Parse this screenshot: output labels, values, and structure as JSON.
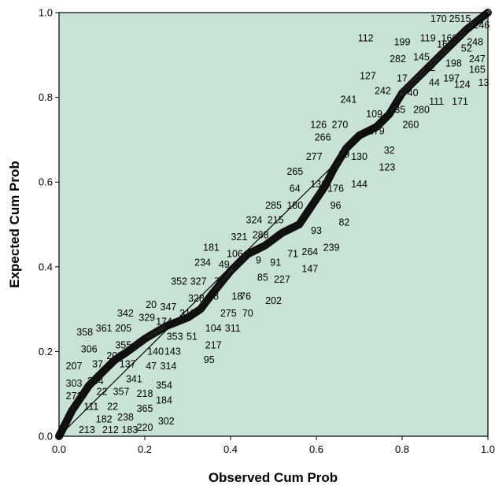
{
  "chart_data": {
    "type": "scatter",
    "title": "",
    "xlabel": "Observed Cum Prob",
    "ylabel": "Expected Cum Prob",
    "xlim": [
      0,
      1
    ],
    "ylim": [
      0,
      1
    ],
    "xticks": [
      "0.0",
      "0.2",
      "0.4",
      "0.6",
      "0.8",
      "1.0"
    ],
    "yticks": [
      "0.0",
      "0.2",
      "0.4",
      "0.6",
      "0.8",
      "1.0"
    ],
    "grid": false,
    "legend": "none",
    "colors": {
      "plot_bg": "#c8e3d3",
      "marker": "#111111",
      "line": "#000000"
    },
    "reference_line": [
      [
        0,
        0
      ],
      [
        1,
        1
      ]
    ],
    "curve": [
      [
        0.0,
        0.0
      ],
      [
        0.01,
        0.02
      ],
      [
        0.02,
        0.04
      ],
      [
        0.03,
        0.06
      ],
      [
        0.05,
        0.09
      ],
      [
        0.07,
        0.12
      ],
      [
        0.1,
        0.15
      ],
      [
        0.13,
        0.18
      ],
      [
        0.16,
        0.2
      ],
      [
        0.2,
        0.23
      ],
      [
        0.25,
        0.26
      ],
      [
        0.3,
        0.28
      ],
      [
        0.33,
        0.3
      ],
      [
        0.36,
        0.34
      ],
      [
        0.4,
        0.39
      ],
      [
        0.44,
        0.43
      ],
      [
        0.48,
        0.45
      ],
      [
        0.52,
        0.48
      ],
      [
        0.56,
        0.5
      ],
      [
        0.58,
        0.53
      ],
      [
        0.6,
        0.56
      ],
      [
        0.62,
        0.59
      ],
      [
        0.64,
        0.63
      ],
      [
        0.67,
        0.68
      ],
      [
        0.7,
        0.71
      ],
      [
        0.74,
        0.73
      ],
      [
        0.77,
        0.76
      ],
      [
        0.8,
        0.81
      ],
      [
        0.85,
        0.86
      ],
      [
        0.9,
        0.91
      ],
      [
        0.95,
        0.96
      ],
      [
        1.0,
        1.0
      ]
    ],
    "annotations": [
      {
        "text": "170",
        "x": 0.885,
        "y": 0.985
      },
      {
        "text": "2515",
        "x": 0.935,
        "y": 0.985
      },
      {
        "text": "112",
        "x": 0.715,
        "y": 0.94
      },
      {
        "text": "199",
        "x": 0.8,
        "y": 0.93
      },
      {
        "text": "119",
        "x": 0.86,
        "y": 0.94
      },
      {
        "text": "166",
        "x": 0.91,
        "y": 0.94
      },
      {
        "text": "246",
        "x": 0.985,
        "y": 0.97
      },
      {
        "text": "248",
        "x": 0.97,
        "y": 0.93
      },
      {
        "text": "160",
        "x": 0.9,
        "y": 0.925
      },
      {
        "text": "52",
        "x": 0.95,
        "y": 0.915
      },
      {
        "text": "282",
        "x": 0.79,
        "y": 0.89
      },
      {
        "text": "145",
        "x": 0.845,
        "y": 0.895
      },
      {
        "text": "198",
        "x": 0.92,
        "y": 0.88
      },
      {
        "text": "247",
        "x": 0.975,
        "y": 0.89
      },
      {
        "text": "42",
        "x": 0.865,
        "y": 0.87
      },
      {
        "text": "165",
        "x": 0.975,
        "y": 0.865
      },
      {
        "text": "127",
        "x": 0.72,
        "y": 0.85
      },
      {
        "text": "17",
        "x": 0.8,
        "y": 0.845
      },
      {
        "text": "44",
        "x": 0.875,
        "y": 0.835
      },
      {
        "text": "197",
        "x": 0.915,
        "y": 0.845
      },
      {
        "text": "124",
        "x": 0.94,
        "y": 0.83
      },
      {
        "text": "13",
        "x": 0.99,
        "y": 0.835
      },
      {
        "text": "242",
        "x": 0.755,
        "y": 0.815
      },
      {
        "text": "40",
        "x": 0.825,
        "y": 0.81
      },
      {
        "text": "241",
        "x": 0.675,
        "y": 0.795
      },
      {
        "text": "111",
        "x": 0.88,
        "y": 0.79
      },
      {
        "text": "171",
        "x": 0.935,
        "y": 0.79
      },
      {
        "text": "35",
        "x": 0.795,
        "y": 0.77
      },
      {
        "text": "280",
        "x": 0.845,
        "y": 0.77
      },
      {
        "text": "109",
        "x": 0.735,
        "y": 0.76
      },
      {
        "text": "126",
        "x": 0.605,
        "y": 0.735
      },
      {
        "text": "270",
        "x": 0.655,
        "y": 0.735
      },
      {
        "text": "260",
        "x": 0.82,
        "y": 0.735
      },
      {
        "text": "179",
        "x": 0.74,
        "y": 0.72
      },
      {
        "text": "266",
        "x": 0.615,
        "y": 0.705
      },
      {
        "text": "32",
        "x": 0.77,
        "y": 0.675
      },
      {
        "text": "277",
        "x": 0.595,
        "y": 0.66
      },
      {
        "text": "29",
        "x": 0.665,
        "y": 0.665
      },
      {
        "text": "130",
        "x": 0.7,
        "y": 0.66
      },
      {
        "text": "123",
        "x": 0.765,
        "y": 0.635
      },
      {
        "text": "265",
        "x": 0.55,
        "y": 0.625
      },
      {
        "text": "136",
        "x": 0.605,
        "y": 0.595
      },
      {
        "text": "144",
        "x": 0.7,
        "y": 0.595
      },
      {
        "text": "64",
        "x": 0.55,
        "y": 0.585
      },
      {
        "text": "176",
        "x": 0.645,
        "y": 0.585
      },
      {
        "text": "285",
        "x": 0.5,
        "y": 0.545
      },
      {
        "text": "180",
        "x": 0.55,
        "y": 0.545
      },
      {
        "text": "96",
        "x": 0.645,
        "y": 0.545
      },
      {
        "text": "324",
        "x": 0.455,
        "y": 0.51
      },
      {
        "text": "215",
        "x": 0.505,
        "y": 0.51
      },
      {
        "text": "82",
        "x": 0.665,
        "y": 0.505
      },
      {
        "text": "93",
        "x": 0.6,
        "y": 0.485
      },
      {
        "text": "321",
        "x": 0.42,
        "y": 0.47
      },
      {
        "text": "288",
        "x": 0.47,
        "y": 0.475
      },
      {
        "text": "181",
        "x": 0.355,
        "y": 0.445
      },
      {
        "text": "106",
        "x": 0.41,
        "y": 0.43
      },
      {
        "text": "264",
        "x": 0.585,
        "y": 0.435
      },
      {
        "text": "239",
        "x": 0.635,
        "y": 0.445
      },
      {
        "text": "71",
        "x": 0.545,
        "y": 0.43
      },
      {
        "text": "9",
        "x": 0.465,
        "y": 0.415
      },
      {
        "text": "91",
        "x": 0.505,
        "y": 0.41
      },
      {
        "text": "234",
        "x": 0.335,
        "y": 0.41
      },
      {
        "text": "49",
        "x": 0.385,
        "y": 0.405
      },
      {
        "text": "147",
        "x": 0.585,
        "y": 0.395
      },
      {
        "text": "85",
        "x": 0.475,
        "y": 0.375
      },
      {
        "text": "227",
        "x": 0.52,
        "y": 0.37
      },
      {
        "text": "352",
        "x": 0.28,
        "y": 0.365
      },
      {
        "text": "327",
        "x": 0.325,
        "y": 0.365
      },
      {
        "text": "72",
        "x": 0.375,
        "y": 0.365
      },
      {
        "text": "328",
        "x": 0.32,
        "y": 0.325
      },
      {
        "text": "78",
        "x": 0.36,
        "y": 0.33
      },
      {
        "text": "76",
        "x": 0.435,
        "y": 0.33
      },
      {
        "text": "18",
        "x": 0.415,
        "y": 0.33
      },
      {
        "text": "202",
        "x": 0.5,
        "y": 0.32
      },
      {
        "text": "20",
        "x": 0.215,
        "y": 0.31
      },
      {
        "text": "347",
        "x": 0.255,
        "y": 0.305
      },
      {
        "text": "275",
        "x": 0.395,
        "y": 0.29
      },
      {
        "text": "70",
        "x": 0.44,
        "y": 0.29
      },
      {
        "text": "342",
        "x": 0.155,
        "y": 0.29
      },
      {
        "text": "329",
        "x": 0.205,
        "y": 0.28
      },
      {
        "text": "315",
        "x": 0.3,
        "y": 0.29
      },
      {
        "text": "174",
        "x": 0.245,
        "y": 0.27
      },
      {
        "text": "104",
        "x": 0.36,
        "y": 0.255
      },
      {
        "text": "311",
        "x": 0.405,
        "y": 0.255
      },
      {
        "text": "358",
        "x": 0.06,
        "y": 0.245
      },
      {
        "text": "361",
        "x": 0.105,
        "y": 0.255
      },
      {
        "text": "205",
        "x": 0.15,
        "y": 0.255
      },
      {
        "text": "353",
        "x": 0.27,
        "y": 0.235
      },
      {
        "text": "51",
        "x": 0.31,
        "y": 0.235
      },
      {
        "text": "355",
        "x": 0.15,
        "y": 0.215
      },
      {
        "text": "217",
        "x": 0.36,
        "y": 0.215
      },
      {
        "text": "306",
        "x": 0.07,
        "y": 0.205
      },
      {
        "text": "203",
        "x": 0.13,
        "y": 0.19
      },
      {
        "text": "140",
        "x": 0.225,
        "y": 0.2
      },
      {
        "text": "143",
        "x": 0.265,
        "y": 0.2
      },
      {
        "text": "95",
        "x": 0.35,
        "y": 0.18
      },
      {
        "text": "207",
        "x": 0.035,
        "y": 0.165
      },
      {
        "text": "37",
        "x": 0.09,
        "y": 0.17
      },
      {
        "text": "137",
        "x": 0.16,
        "y": 0.17
      },
      {
        "text": "47",
        "x": 0.215,
        "y": 0.165
      },
      {
        "text": "314",
        "x": 0.255,
        "y": 0.165
      },
      {
        "text": "303",
        "x": 0.035,
        "y": 0.125
      },
      {
        "text": "304",
        "x": 0.085,
        "y": 0.13
      },
      {
        "text": "341",
        "x": 0.175,
        "y": 0.135
      },
      {
        "text": "354",
        "x": 0.245,
        "y": 0.12
      },
      {
        "text": "273",
        "x": 0.035,
        "y": 0.095
      },
      {
        "text": "22",
        "x": 0.1,
        "y": 0.105
      },
      {
        "text": "357",
        "x": 0.145,
        "y": 0.105
      },
      {
        "text": "218",
        "x": 0.2,
        "y": 0.1
      },
      {
        "text": "111",
        "x": 0.075,
        "y": 0.07
      },
      {
        "text": "22",
        "x": 0.125,
        "y": 0.07
      },
      {
        "text": "184",
        "x": 0.245,
        "y": 0.085
      },
      {
        "text": "182",
        "x": 0.105,
        "y": 0.04
      },
      {
        "text": "238",
        "x": 0.155,
        "y": 0.045
      },
      {
        "text": "365",
        "x": 0.2,
        "y": 0.065
      },
      {
        "text": "302",
        "x": 0.25,
        "y": 0.035
      },
      {
        "text": "213",
        "x": 0.065,
        "y": 0.015
      },
      {
        "text": "212",
        "x": 0.12,
        "y": 0.015
      },
      {
        "text": "183",
        "x": 0.165,
        "y": 0.015
      },
      {
        "text": "220",
        "x": 0.2,
        "y": 0.02
      }
    ]
  }
}
